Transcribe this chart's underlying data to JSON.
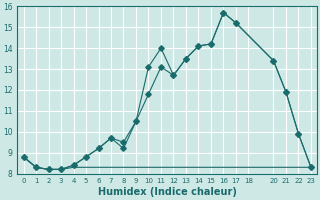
{
  "xlabel": "Humidex (Indice chaleur)",
  "xlim": [
    -0.5,
    23.5
  ],
  "ylim": [
    8,
    16
  ],
  "xticks": [
    0,
    1,
    2,
    3,
    4,
    5,
    6,
    7,
    8,
    9,
    10,
    11,
    12,
    13,
    14,
    15,
    16,
    17,
    18,
    20,
    21,
    22,
    23
  ],
  "yticks": [
    8,
    9,
    10,
    11,
    12,
    13,
    14,
    15,
    16
  ],
  "bg_color": "#cde8e5",
  "line_color": "#1a6b6b",
  "grid_color": "#ffffff",
  "line1_x": [
    0,
    1,
    2,
    3,
    4,
    5,
    6,
    7,
    8,
    9,
    10,
    11,
    12,
    13,
    14,
    15,
    16,
    17,
    20,
    21,
    22,
    23
  ],
  "line1_y": [
    8.8,
    8.3,
    8.2,
    8.2,
    8.4,
    8.8,
    9.2,
    9.7,
    9.2,
    10.5,
    13.1,
    14.0,
    12.7,
    13.5,
    14.1,
    14.2,
    15.7,
    15.2,
    13.4,
    11.9,
    9.9,
    8.3
  ],
  "line2_x": [
    0,
    1,
    2,
    3,
    4,
    5,
    6,
    7,
    8,
    9,
    10,
    11,
    12,
    13,
    14,
    15,
    16,
    17,
    20,
    21,
    22,
    23
  ],
  "line2_y": [
    8.8,
    8.3,
    8.2,
    8.2,
    8.4,
    8.8,
    9.2,
    9.7,
    9.5,
    10.5,
    11.8,
    13.1,
    12.7,
    13.5,
    14.1,
    14.2,
    15.7,
    15.2,
    13.4,
    11.9,
    9.9,
    8.3
  ],
  "line3_x": [
    0,
    1,
    2,
    3,
    4,
    5,
    6,
    7,
    8,
    9,
    10,
    11,
    12,
    13,
    14,
    15,
    16,
    17,
    18,
    20,
    21,
    22,
    23
  ],
  "line3_y": [
    8.8,
    8.3,
    8.2,
    8.2,
    8.3,
    8.3,
    8.3,
    8.3,
    8.3,
    8.3,
    8.3,
    8.3,
    8.3,
    8.3,
    8.3,
    8.3,
    8.3,
    8.3,
    8.3,
    8.3,
    8.3,
    8.3,
    8.3
  ]
}
